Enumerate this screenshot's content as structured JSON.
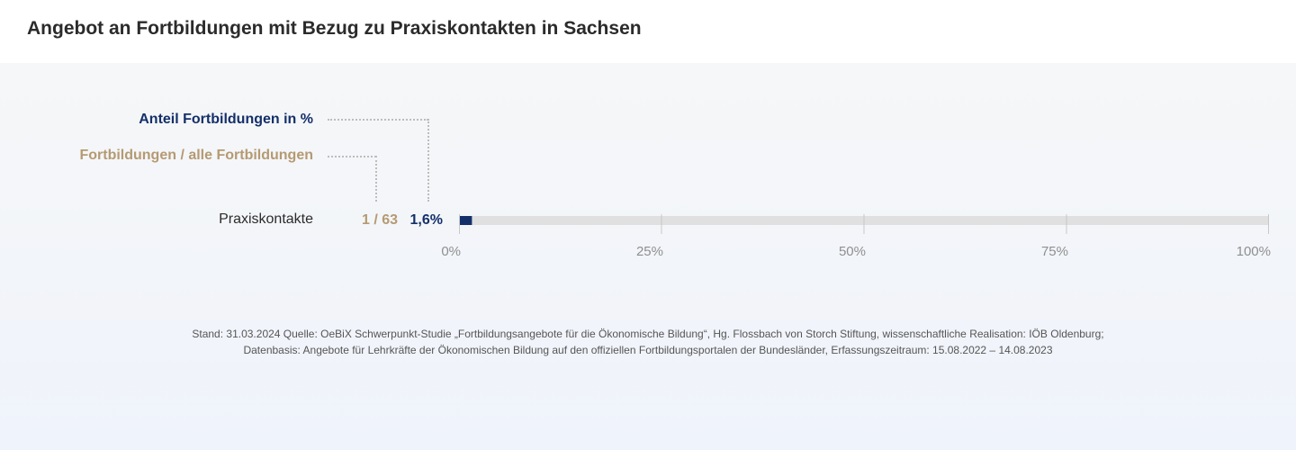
{
  "header": {
    "title": "Angebot an Fortbildungen mit Bezug zu Praxiskontakten in Sachsen"
  },
  "legend": {
    "share_label": "Anteil Fortbildungen  in %",
    "count_label": "Fortbildungen / alle Fortbildungen"
  },
  "colors": {
    "share": "#14306a",
    "count": "#b59a72",
    "track": "#e0e0e0",
    "gridline": "#c8c8c8"
  },
  "chart_data": {
    "type": "bar",
    "orientation": "horizontal",
    "categories": [
      "Praxiskontakte"
    ],
    "values": [
      1.6
    ],
    "counts": [
      "1 / 63"
    ],
    "value_labels": [
      "1,6%"
    ],
    "xlim": [
      0,
      100
    ],
    "xticks": [
      0,
      25,
      50,
      75,
      100
    ],
    "xtick_labels": [
      "0%",
      "25%",
      "50%",
      "75%",
      "100%"
    ]
  },
  "footnote": {
    "line1": "Stand: 31.03.2024 Quelle: OeBiX Schwerpunkt-Studie „Fortbildungsangebote für die Ökonomische Bildung“, Hg. Flossbach von Storch Stiftung, wissenschaftliche Realisation: IÖB Oldenburg;",
    "line2": "Datenbasis: Angebote für Lehrkräfte der Ökonomischen Bildung auf den offiziellen Fortbildungsportalen der Bundesländer, Erfassungszeitraum: 15.08.2022 – 14.08.2023"
  }
}
